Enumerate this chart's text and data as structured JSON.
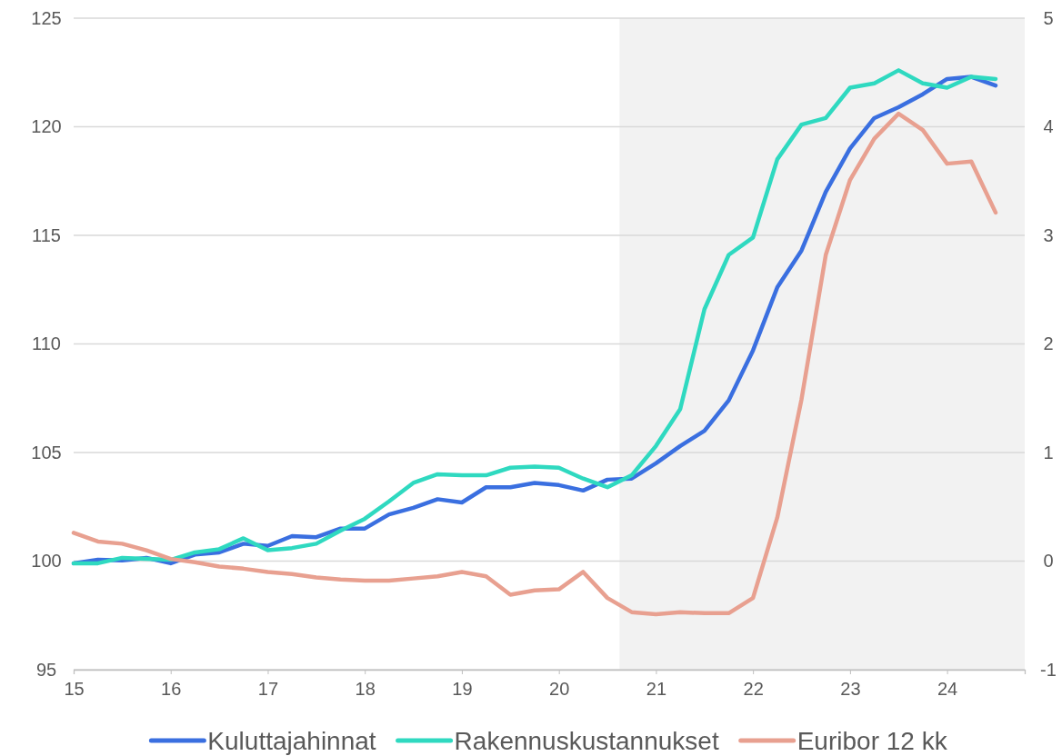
{
  "chart_data": {
    "type": "line",
    "x": [
      15,
      15.25,
      15.5,
      15.75,
      16,
      16.25,
      16.5,
      16.75,
      17,
      17.25,
      17.5,
      17.75,
      18,
      18.25,
      18.5,
      18.75,
      19,
      19.25,
      19.5,
      19.75,
      20,
      20.25,
      20.5,
      20.75,
      21,
      21.25,
      21.5,
      21.75,
      22,
      22.25,
      22.5,
      22.75,
      23,
      23.25,
      23.5,
      23.75,
      24,
      24.25,
      24.5
    ],
    "series": [
      {
        "name": "Kuluttajahinnat",
        "color": "#3a6fe0",
        "values": [
          99.9,
          100.06,
          100.03,
          100.15,
          99.9,
          100.3,
          100.4,
          100.8,
          100.7,
          101.15,
          101.1,
          101.5,
          101.5,
          102.15,
          102.45,
          102.85,
          102.7,
          103.4,
          103.4,
          103.6,
          103.5,
          103.25,
          103.75,
          103.8,
          104.5,
          105.3,
          106.0,
          107.4,
          109.7,
          112.6,
          114.3,
          117.0,
          119.0,
          120.4,
          120.9,
          121.5,
          122.2,
          122.3,
          121.9
        ]
      },
      {
        "name": "Rakennuskustannukset",
        "color": "#2fd9c0",
        "values": [
          99.9,
          99.9,
          100.15,
          100.1,
          100.06,
          100.4,
          100.55,
          101.05,
          100.5,
          100.6,
          100.8,
          101.4,
          101.95,
          102.75,
          103.6,
          104.0,
          103.95,
          103.95,
          104.3,
          104.35,
          104.3,
          103.8,
          103.4,
          103.95,
          105.3,
          107.0,
          111.6,
          114.1,
          114.9,
          118.5,
          120.1,
          120.4,
          121.8,
          122.0,
          122.6,
          122.0,
          121.8,
          122.3,
          122.2
        ]
      },
      {
        "name": "Euribor 12 kk",
        "color": "#e8a090",
        "axis": "y2",
        "values": [
          0.26,
          0.18,
          0.16,
          0.1,
          0.02,
          -0.01,
          -0.05,
          -0.07,
          -0.1,
          -0.12,
          -0.15,
          -0.17,
          -0.18,
          -0.18,
          -0.16,
          -0.14,
          -0.1,
          -0.14,
          -0.31,
          -0.27,
          -0.26,
          -0.1,
          -0.34,
          -0.47,
          -0.49,
          -0.47,
          -0.48,
          -0.48,
          -0.34,
          0.4,
          1.49,
          2.82,
          3.51,
          3.89,
          4.12,
          3.97,
          3.66,
          3.68,
          3.21
        ]
      }
    ],
    "xlim": [
      15,
      24.8
    ],
    "xticks": [
      15,
      16,
      17,
      18,
      19,
      20,
      21,
      22,
      23,
      24
    ],
    "ylim": [
      95,
      125
    ],
    "yticks": [
      95,
      100,
      105,
      110,
      115,
      120,
      125
    ],
    "y2lim": [
      -1,
      5
    ],
    "y2ticks": [
      -1,
      0,
      1,
      2,
      3,
      4,
      5
    ],
    "bands": [
      {
        "axis": "x",
        "from": 20.625,
        "to": 24.8,
        "color": "#f2f2f2"
      }
    ],
    "grid": "y",
    "legend": "bottom",
    "marker": "none",
    "line_style": "solid"
  }
}
